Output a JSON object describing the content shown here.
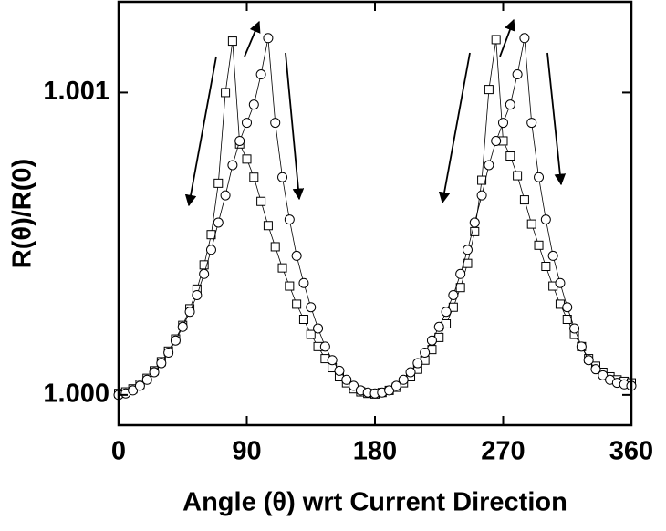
{
  "chart_data": {
    "type": "scatter",
    "x_label": "Angle (θ) wrt Current Direction",
    "y_label": "R(θ)/R(0)",
    "xlim": [
      0,
      360
    ],
    "xticks": [
      0,
      90,
      180,
      270,
      360
    ],
    "ylim": [
      0.9999,
      1.0013
    ],
    "yticks": [
      {
        "value": 1.0,
        "label": "1.000"
      },
      {
        "value": 1.001,
        "label": "1.001"
      }
    ],
    "x": [
      0,
      5,
      10,
      15,
      20,
      25,
      30,
      35,
      40,
      45,
      50,
      55,
      60,
      65,
      70,
      75,
      80,
      85,
      90,
      95,
      100,
      105,
      110,
      115,
      120,
      125,
      130,
      135,
      140,
      145,
      150,
      155,
      160,
      165,
      170,
      175,
      180,
      185,
      190,
      195,
      200,
      205,
      210,
      215,
      220,
      225,
      230,
      235,
      240,
      245,
      250,
      255,
      260,
      265,
      270,
      275,
      280,
      285,
      290,
      295,
      300,
      305,
      310,
      315,
      320,
      325,
      330,
      335,
      340,
      345,
      350,
      355,
      360
    ],
    "series": [
      {
        "marker": "square",
        "color": "#000000",
        "values": [
          1.000005,
          1.00001,
          1.00002,
          1.000035,
          1.000055,
          1.00008,
          1.00011,
          1.000145,
          1.000185,
          1.00023,
          1.000285,
          1.00035,
          1.00043,
          1.00053,
          1.0007,
          1.001,
          1.00117,
          1.00083,
          1.00078,
          1.00072,
          1.00064,
          1.00056,
          1.00049,
          1.00042,
          1.00036,
          1.0003,
          1.00025,
          1.0002,
          1.00016,
          1.00012,
          1.00009,
          1.00006,
          1.00004,
          1.00002,
          1.00001,
          1.000005,
          1.000003,
          1.000008,
          1.000015,
          1.000025,
          1.00004,
          1.00006,
          1.000085,
          1.000115,
          1.00015,
          1.00019,
          1.000235,
          1.00029,
          1.000355,
          1.000435,
          1.00054,
          1.00071,
          1.00101,
          1.001175,
          1.00084,
          1.00079,
          1.000725,
          1.000645,
          1.000565,
          1.000495,
          1.000425,
          1.00036,
          1.0003,
          1.00025,
          1.0002,
          1.00016,
          1.00012,
          1.000095,
          1.000075,
          1.00006,
          1.00005,
          1.000045,
          1.00004
        ]
      },
      {
        "marker": "circle",
        "color": "#000000",
        "values": [
          1.0,
          1.000005,
          1.000015,
          1.00003,
          1.00005,
          1.000075,
          1.000105,
          1.00014,
          1.00018,
          1.000225,
          1.000275,
          1.00033,
          1.0004,
          1.00048,
          1.00057,
          1.00066,
          1.00076,
          1.00084,
          1.0009,
          1.00096,
          1.00106,
          1.00118,
          1.0009,
          1.00072,
          1.00058,
          1.00046,
          1.00037,
          1.00029,
          1.00022,
          1.00016,
          1.000115,
          1.00008,
          1.00005,
          1.00003,
          1.000015,
          1.000008,
          1.000005,
          1.000008,
          1.000015,
          1.00003,
          1.00005,
          1.000075,
          1.000105,
          1.00014,
          1.00018,
          1.000225,
          1.000275,
          1.00033,
          1.0004,
          1.00048,
          1.00057,
          1.00066,
          1.00076,
          1.00084,
          1.0009,
          1.00096,
          1.00106,
          1.00118,
          1.0009,
          1.00072,
          1.00058,
          1.00046,
          1.00037,
          1.00029,
          1.00022,
          1.00016,
          1.000115,
          1.000085,
          1.000065,
          1.00005,
          1.00004,
          1.000035,
          1.00003
        ]
      }
    ]
  }
}
